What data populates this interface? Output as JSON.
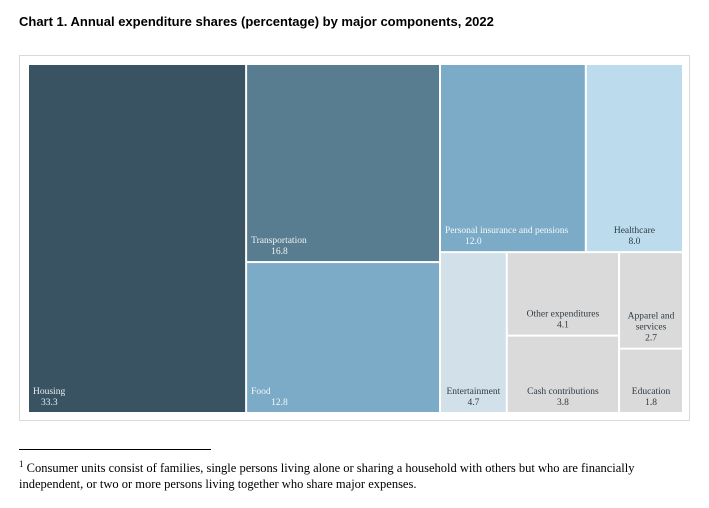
{
  "title": "Chart 1. Annual expenditure shares (percentage) by major components, 2022",
  "chart_data": {
    "type": "treemap",
    "items": [
      {
        "name": "Housing",
        "value": 33.3,
        "color": "#3a5362",
        "text_color": "#e6eef3"
      },
      {
        "name": "Transportation",
        "value": 16.8,
        "color": "#587c90",
        "text_color": "#eef4f7"
      },
      {
        "name": "Food",
        "value": 12.8,
        "color": "#7babc6",
        "text_color": "#f4f8fb"
      },
      {
        "name": "Personal insurance and pensions",
        "value": 12.0,
        "color": "#7babc6",
        "text_color": "#f4f8fb"
      },
      {
        "name": "Healthcare",
        "value": 8.0,
        "color": "#bcdcee",
        "text_color": "#2f3b44"
      },
      {
        "name": "Entertainment",
        "value": 4.7,
        "color": "#d2e0e9",
        "text_color": "#2f3b44"
      },
      {
        "name": "Other expenditures",
        "value": 4.1,
        "color": "#dadada",
        "text_color": "#2f3b44"
      },
      {
        "name": "Cash contributions",
        "value": 3.8,
        "color": "#dadada",
        "text_color": "#2f3b44"
      },
      {
        "name": "Apparel and services",
        "value": 2.7,
        "color": "#dadada",
        "text_color": "#2f3b44"
      },
      {
        "name": "Education",
        "value": 1.8,
        "color": "#dadada",
        "text_color": "#2f3b44"
      }
    ]
  },
  "footnote": {
    "marker": "1",
    "text": " Consumer units consist of families, single persons living alone or sharing a household with others but who are financially independent, or two or more persons living together who share major expenses."
  }
}
